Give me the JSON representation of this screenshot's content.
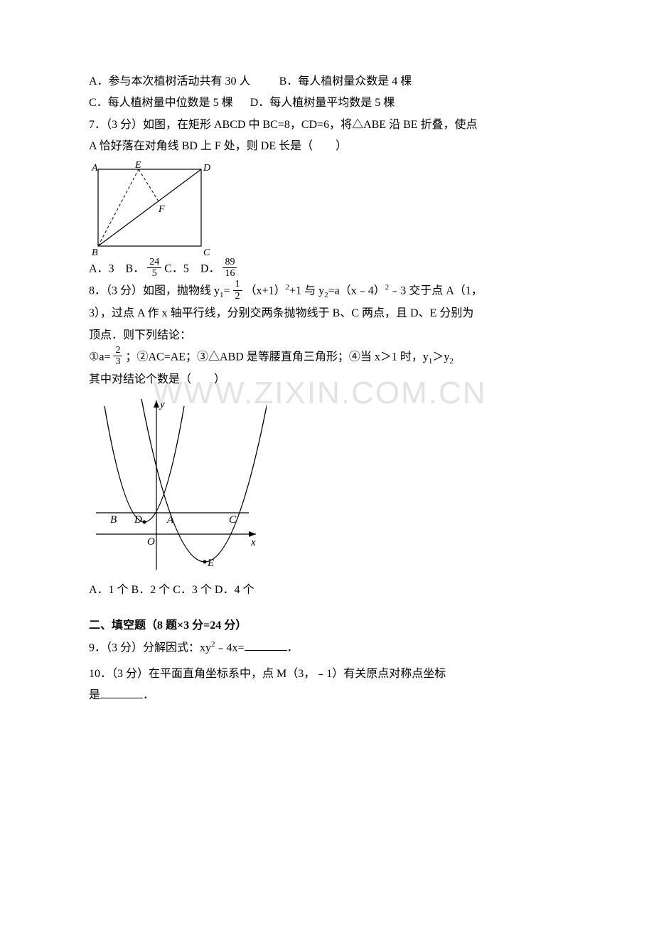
{
  "q6_optA": "A．参与本次植树活动共有 30 人",
  "q6_optB": "B．每人植树量众数是 4 棵",
  "q6_optC": "C．每人植树量中位数是 5 棵",
  "q6_optD": "D．每人植树量平均数是 5 棵",
  "q7_stem1": "7．（3 分）如图，在矩形 ABCD 中 BC=8，CD=6，将△ABE 沿 BE 折叠，使点",
  "q7_stem2": "A 恰好落在对角线 BD 上 F 处，则 DE 长是（　　）",
  "q7_svg": {
    "A": "A",
    "E": "E",
    "D": "D",
    "B": "B",
    "C": "C",
    "F": "F"
  },
  "q7_opts": {
    "A_label": "A．3　B．",
    "B_frac_num": "24",
    "B_frac_den": "5",
    "C_label": " C．5　D．",
    "D_frac_num": "89",
    "D_frac_den": "16"
  },
  "q8_stem1_a": "8．（3 分）如图，抛物线 y",
  "q8_stem1_b": "=",
  "q8_frac1_num": "1",
  "q8_frac1_den": "2",
  "q8_stem1_c": "（x+1）",
  "q8_stem1_d": "+1 与 y",
  "q8_stem1_e": "=a（x﹣4）",
  "q8_stem1_f": "﹣3 交于点 A（1，",
  "q8_stem2": "3），过点 A 作 x 轴平行线，分别交两条抛物线于 B、C 两点，且 D、E 分别为",
  "q8_stem3": "顶点．则下列结论：",
  "q8_concl_a": "①a=",
  "q8_frac2_num": "2",
  "q8_frac2_den": "3",
  "q8_concl_b": "；②AC=AE；③△ABD 是等腰直角三角形；④当 x＞1 时，y",
  "q8_concl_c": "＞y",
  "q8_concl2": "其中对结论个数是（　　）",
  "q8_svg": {
    "y": "y",
    "x": "x",
    "B": "B",
    "D": "D",
    "A": "A",
    "C": "C",
    "O": "O",
    "E": "E"
  },
  "q8_opts": "A．1 个 B．2 个 C．3 个 D．4 个",
  "section2": "二、填空题（8 题&#215;3 分=24 分）",
  "q9_a": "9．（3 分）分解因式：xy",
  "q9_b": "﹣4x=",
  "q9_c": "．",
  "q10_a": "10．（3 分）在平面直角坐标系中，点 M（3，﹣1）有关原点对称点坐标",
  "q10_b": "是",
  "q10_c": "．",
  "watermark": "WWW.ZIXIN.COM.CN",
  "colors": {
    "text": "#000000",
    "bg": "#ffffff",
    "wm": "#e3e3e3"
  }
}
